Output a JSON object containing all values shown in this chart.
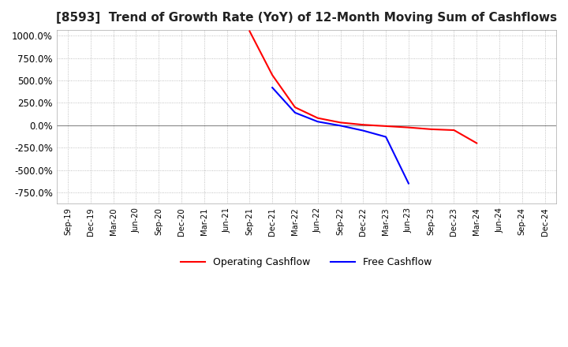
{
  "title": "[8593]  Trend of Growth Rate (YoY) of 12-Month Moving Sum of Cashflows",
  "title_fontsize": 11,
  "ylim": [
    -875,
    1062.5
  ],
  "yticks": [
    -750,
    -500,
    -250,
    0,
    250,
    500,
    750,
    1000
  ],
  "background_color": "#ffffff",
  "grid_color": "#b0b0b0",
  "operating_color": "#ff0000",
  "free_color": "#0000ff",
  "legend_labels": [
    "Operating Cashflow",
    "Free Cashflow"
  ],
  "x_labels": [
    "Sep-19",
    "Dec-19",
    "Mar-20",
    "Jun-20",
    "Sep-20",
    "Dec-20",
    "Mar-21",
    "Jun-21",
    "Sep-21",
    "Dec-21",
    "Mar-22",
    "Jun-22",
    "Sep-22",
    "Dec-22",
    "Mar-23",
    "Jun-23",
    "Sep-23",
    "Dec-23",
    "Mar-24",
    "Jun-24",
    "Sep-24",
    "Dec-24"
  ],
  "operating_cashflow": [
    null,
    null,
    null,
    null,
    null,
    null,
    null,
    null,
    1050,
    560,
    200,
    80,
    30,
    5,
    -10,
    -25,
    -45,
    -55,
    -200,
    null,
    null,
    null
  ],
  "free_cashflow": [
    null,
    null,
    null,
    null,
    null,
    null,
    null,
    null,
    null,
    420,
    140,
    40,
    -5,
    -60,
    -130,
    -650,
    null,
    null,
    null,
    null,
    null,
    null
  ]
}
